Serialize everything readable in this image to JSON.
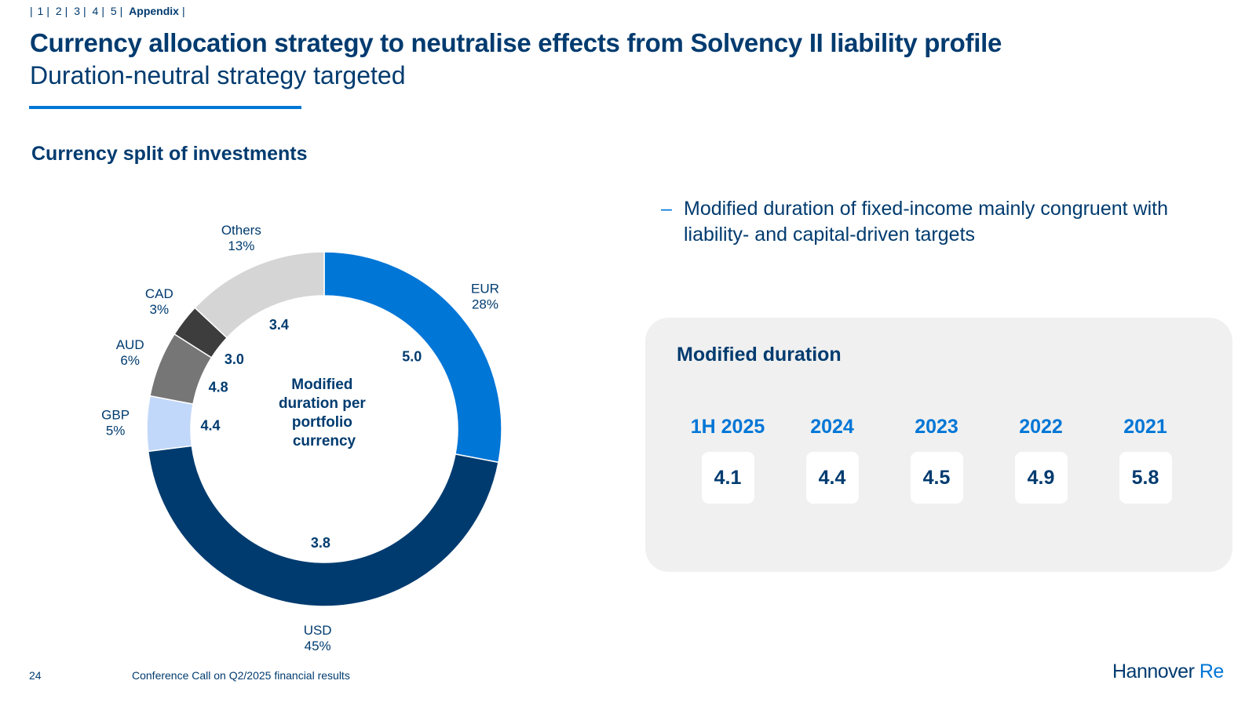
{
  "nav": {
    "items": [
      "1",
      "2",
      "3",
      "4",
      "5"
    ],
    "active": "Appendix"
  },
  "header": {
    "title": "Currency allocation strategy to neutralise effects from Solvency II liability profile",
    "subtitle": "Duration-neutral strategy targeted"
  },
  "section": {
    "title": "Currency split of investments"
  },
  "chart_data": {
    "type": "pie",
    "donut": true,
    "center_label": [
      "Modified",
      "duration per",
      "portfolio",
      "currency"
    ],
    "slices": [
      {
        "name": "EUR",
        "share": 28,
        "share_label": "28%",
        "duration": "5.0",
        "color": "#0076D6"
      },
      {
        "name": "USD",
        "share": 45,
        "share_label": "45%",
        "duration": "3.8",
        "color": "#003B6F"
      },
      {
        "name": "GBP",
        "share": 5,
        "share_label": "5%",
        "duration": "4.4",
        "color": "#C2D8FA"
      },
      {
        "name": "AUD",
        "share": 6,
        "share_label": "6%",
        "duration": "4.8",
        "color": "#767676"
      },
      {
        "name": "CAD",
        "share": 3,
        "share_label": "3%",
        "duration": "3.0",
        "color": "#3D3D3D"
      },
      {
        "name": "Others",
        "share": 13,
        "share_label": "13%",
        "duration": "3.4",
        "color": "#D5D5D5"
      }
    ]
  },
  "bullet": {
    "dash": "–",
    "text": "Modified duration of fixed-income mainly congruent with liability- and capital-driven targets"
  },
  "panel": {
    "title": "Modified duration",
    "items": [
      {
        "year": "1H 2025",
        "value": "4.1"
      },
      {
        "year": "2024",
        "value": "4.4"
      },
      {
        "year": "2023",
        "value": "4.5"
      },
      {
        "year": "2022",
        "value": "4.9"
      },
      {
        "year": "2021",
        "value": "5.8"
      }
    ]
  },
  "footer": {
    "page": "24",
    "text": "Conference Call on Q2/2025 financial results",
    "logo_main": "Hannover",
    "logo_accent": "Re"
  }
}
